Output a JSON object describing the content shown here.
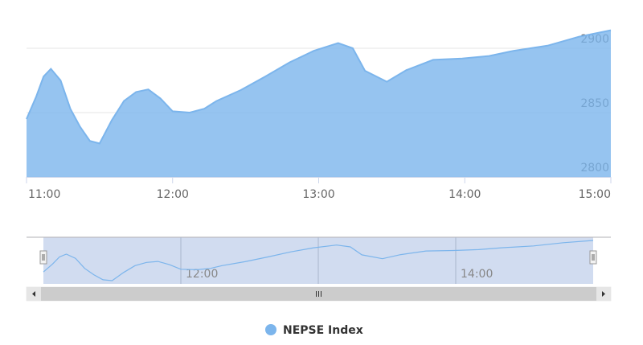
{
  "chart_data": {
    "type": "area",
    "x": [
      "11:00",
      "11:04",
      "11:07",
      "11:10",
      "11:14",
      "11:18",
      "11:22",
      "11:26",
      "11:30",
      "11:35",
      "11:40",
      "11:45",
      "11:50",
      "11:55",
      "12:00",
      "12:07",
      "12:13",
      "12:18",
      "12:28",
      "12:38",
      "12:48",
      "12:58",
      "13:08",
      "13:14",
      "13:19",
      "13:28",
      "13:36",
      "13:47",
      "13:59",
      "14:10",
      "14:20",
      "14:34",
      "14:47",
      "15:00"
    ],
    "series": [
      {
        "name": "NEPSE Index",
        "color": "#7cb5ec",
        "values": [
          2845,
          2862.5,
          2878,
          2884,
          2875,
          2853,
          2839,
          2828,
          2826,
          2844,
          2859,
          2866,
          2868,
          2861,
          2851,
          2850,
          2853,
          2859,
          2867.5,
          2878,
          2889,
          2898,
          2904,
          2900,
          2882.5,
          2874,
          2883,
          2891,
          2892,
          2894,
          2898,
          2902,
          2909,
          2914
        ]
      }
    ],
    "xlim": [
      "11:00",
      "15:00"
    ],
    "xticks": [
      "11:00",
      "12:00",
      "13:00",
      "14:00",
      "15:00"
    ],
    "ylim": [
      2800,
      2925
    ],
    "yticks": [
      2800,
      2850,
      2900
    ],
    "grid": true,
    "navigator": true
  }
}
